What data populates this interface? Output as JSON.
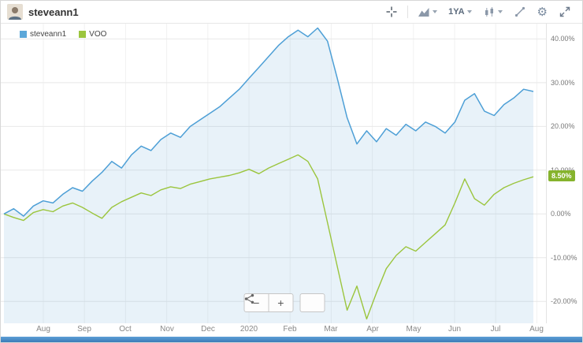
{
  "header": {
    "title": "steveann1",
    "range_label": "1YA"
  },
  "icons": {
    "gear": "⚙"
  },
  "legend": {
    "items": [
      {
        "label": "steveann1",
        "color": "#5ba7d9"
      },
      {
        "label": "VOO",
        "color": "#9bc53d"
      }
    ]
  },
  "controls": {
    "zoom_out_label": "−",
    "zoom_in_label": "+"
  },
  "chart_data": {
    "type": "line",
    "title": "",
    "xlabel": "",
    "ylabel": "",
    "grid": true,
    "legend_position": "top-left",
    "ylim": [
      -25,
      43.5
    ],
    "x_labels": [
      "Aug",
      "Sep",
      "Oct",
      "Nov",
      "Dec",
      "2020",
      "Feb",
      "Mar",
      "Apr",
      "May",
      "Jun",
      "Jul",
      "Aug"
    ],
    "y_tick_values": [
      40,
      30,
      20,
      10,
      0,
      -10,
      -20
    ],
    "y_tick_labels": [
      "40.00%",
      "30.00%",
      "20.00%",
      "10.00%",
      "0.00%",
      "-10.00%",
      "-20.00%"
    ],
    "series": [
      {
        "name": "steveann1",
        "color": "#4d9fd6",
        "fill": "rgba(109,175,219,0.16)",
        "values": [
          0.0,
          1.2,
          -0.5,
          1.8,
          3.0,
          2.5,
          4.5,
          6.0,
          5.2,
          7.5,
          9.5,
          12.0,
          10.5,
          13.5,
          15.5,
          14.5,
          17.0,
          18.5,
          17.5,
          20.0,
          21.5,
          23.0,
          24.5,
          26.5,
          28.5,
          31.0,
          33.5,
          36.0,
          38.5,
          40.5,
          42.0,
          40.5,
          42.5,
          39.5,
          31.0,
          22.0,
          16.0,
          19.0,
          16.5,
          19.5,
          18.0,
          20.5,
          19.0,
          21.0,
          20.0,
          18.5,
          21.0,
          26.0,
          27.5,
          23.5,
          22.5,
          25.0,
          26.5,
          28.5,
          28.0
        ]
      },
      {
        "name": "VOO",
        "color": "#9bc53d",
        "fill": "none",
        "values": [
          0.0,
          -0.8,
          -1.5,
          0.3,
          1.0,
          0.5,
          1.8,
          2.5,
          1.5,
          0.2,
          -1.0,
          1.5,
          2.8,
          3.8,
          4.8,
          4.2,
          5.5,
          6.2,
          5.8,
          6.8,
          7.4,
          8.0,
          8.4,
          8.8,
          9.4,
          10.2,
          9.2,
          10.5,
          11.5,
          12.5,
          13.5,
          12.0,
          8.0,
          -2.0,
          -12.0,
          -22.0,
          -16.5,
          -24.0,
          -18.0,
          -12.5,
          -9.5,
          -7.5,
          -8.5,
          -6.5,
          -4.5,
          -2.5,
          2.5,
          8.0,
          3.5,
          2.0,
          4.5,
          6.0,
          7.0,
          7.8,
          8.5
        ]
      }
    ],
    "last_value_badge": {
      "label": "8.50%",
      "value": 8.5,
      "bg": "#86b32d",
      "text_color": "#ffffff"
    }
  }
}
